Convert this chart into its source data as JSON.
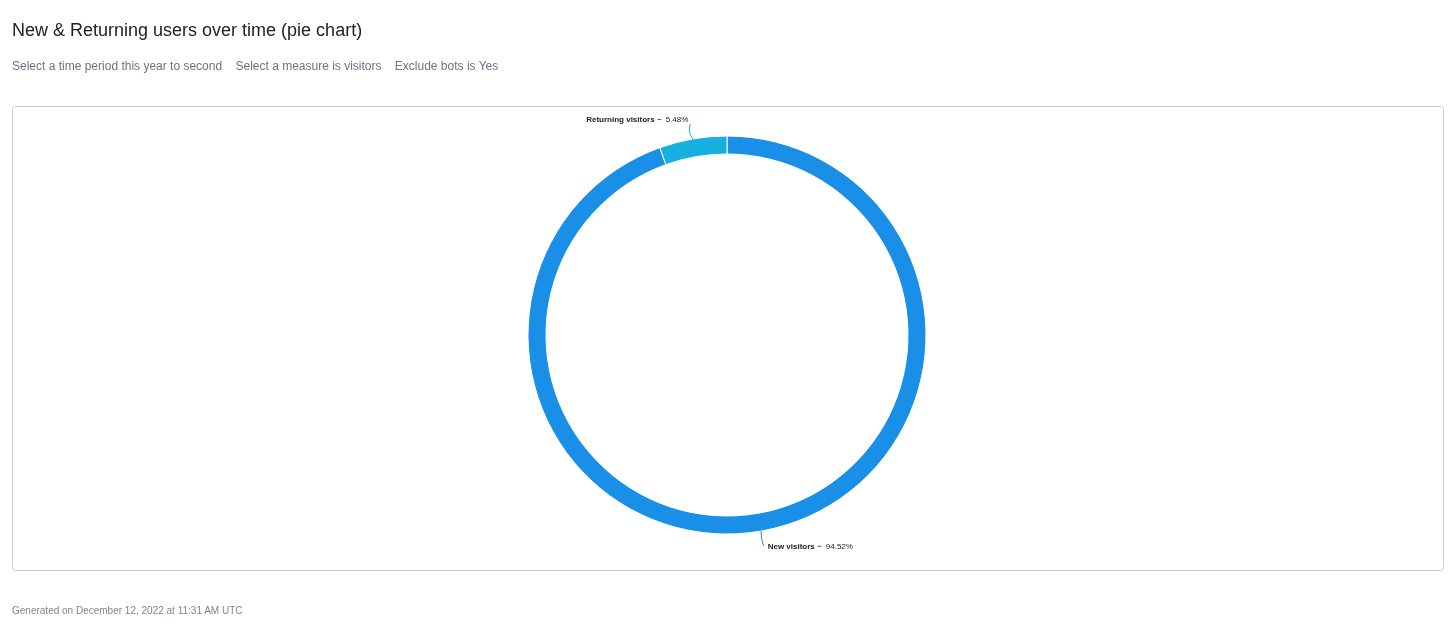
{
  "chart_data": {
    "type": "donut",
    "title": "New & Returning users over time (pie chart)",
    "subtitle": "Select a time period this year to second    Select a measure is visitors    Exclude bots is Yes",
    "categories": [
      "New visitors",
      "Returning visitors"
    ],
    "values": [
      94.52,
      5.48
    ],
    "colors": [
      "#1a8fe8",
      "#17aee0"
    ],
    "value_labels": [
      "94.52%",
      "5.48%"
    ],
    "annotations": [
      "Generated on December 12, 2022 at 11:31 AM UTC"
    ]
  }
}
